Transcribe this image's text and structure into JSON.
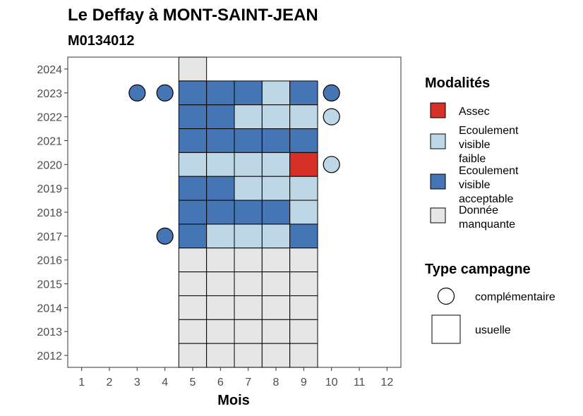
{
  "chart_data": {
    "type": "heatmap",
    "title": "Le Deffay à MONT-SAINT-JEAN",
    "subtitle": "M0134012",
    "xlabel": "Mois",
    "ylabel": "",
    "x_ticks": [
      "1",
      "2",
      "3",
      "4",
      "5",
      "6",
      "7",
      "8",
      "9",
      "10",
      "11",
      "12"
    ],
    "y_ticks": [
      "2012",
      "2013",
      "2014",
      "2015",
      "2016",
      "2017",
      "2018",
      "2019",
      "2020",
      "2021",
      "2022",
      "2023",
      "2024"
    ],
    "xlim": [
      0.5,
      12.5
    ],
    "ylim": [
      2011.5,
      2024.5
    ],
    "grid": false,
    "legend_placement": "right",
    "modalities": {
      "title": "Modalités",
      "items": [
        {
          "key": "assec",
          "label_lines": [
            "Assec"
          ],
          "color": "#d73027"
        },
        {
          "key": "faible",
          "label_lines": [
            "Ecoulement",
            "visible",
            "faible"
          ],
          "color": "#bdd7e7"
        },
        {
          "key": "acceptable",
          "label_lines": [
            "Ecoulement",
            "visible",
            "acceptable"
          ],
          "color": "#4575b4"
        },
        {
          "key": "manquante",
          "label_lines": [
            "Donnée",
            "manquante"
          ],
          "color": "#e6e6e6"
        }
      ]
    },
    "campaign_types": {
      "title": "Type campagne",
      "items": [
        {
          "key": "complementaire",
          "label": "complémentaire",
          "shape": "circle"
        },
        {
          "key": "usuelle",
          "label": "usuelle",
          "shape": "square"
        }
      ]
    },
    "points": [
      {
        "year": 2024,
        "month": 5,
        "modality": "manquante",
        "type": "usuelle"
      },
      {
        "year": 2023,
        "month": 3,
        "modality": "acceptable",
        "type": "complementaire"
      },
      {
        "year": 2023,
        "month": 4,
        "modality": "acceptable",
        "type": "complementaire"
      },
      {
        "year": 2023,
        "month": 5,
        "modality": "acceptable",
        "type": "usuelle"
      },
      {
        "year": 2023,
        "month": 6,
        "modality": "acceptable",
        "type": "usuelle"
      },
      {
        "year": 2023,
        "month": 7,
        "modality": "acceptable",
        "type": "usuelle"
      },
      {
        "year": 2023,
        "month": 8,
        "modality": "faible",
        "type": "usuelle"
      },
      {
        "year": 2023,
        "month": 9,
        "modality": "acceptable",
        "type": "usuelle"
      },
      {
        "year": 2023,
        "month": 10,
        "modality": "acceptable",
        "type": "complementaire"
      },
      {
        "year": 2022,
        "month": 5,
        "modality": "acceptable",
        "type": "usuelle"
      },
      {
        "year": 2022,
        "month": 6,
        "modality": "acceptable",
        "type": "usuelle"
      },
      {
        "year": 2022,
        "month": 7,
        "modality": "faible",
        "type": "usuelle"
      },
      {
        "year": 2022,
        "month": 8,
        "modality": "faible",
        "type": "usuelle"
      },
      {
        "year": 2022,
        "month": 9,
        "modality": "faible",
        "type": "usuelle"
      },
      {
        "year": 2022,
        "month": 10,
        "modality": "faible",
        "type": "complementaire"
      },
      {
        "year": 2021,
        "month": 5,
        "modality": "acceptable",
        "type": "usuelle"
      },
      {
        "year": 2021,
        "month": 6,
        "modality": "acceptable",
        "type": "usuelle"
      },
      {
        "year": 2021,
        "month": 7,
        "modality": "acceptable",
        "type": "usuelle"
      },
      {
        "year": 2021,
        "month": 8,
        "modality": "acceptable",
        "type": "usuelle"
      },
      {
        "year": 2021,
        "month": 9,
        "modality": "acceptable",
        "type": "usuelle"
      },
      {
        "year": 2020,
        "month": 5,
        "modality": "faible",
        "type": "usuelle"
      },
      {
        "year": 2020,
        "month": 6,
        "modality": "faible",
        "type": "usuelle"
      },
      {
        "year": 2020,
        "month": 7,
        "modality": "faible",
        "type": "usuelle"
      },
      {
        "year": 2020,
        "month": 8,
        "modality": "faible",
        "type": "usuelle"
      },
      {
        "year": 2020,
        "month": 9,
        "modality": "assec",
        "type": "usuelle"
      },
      {
        "year": 2020,
        "month": 10,
        "modality": "faible",
        "type": "complementaire"
      },
      {
        "year": 2019,
        "month": 5,
        "modality": "acceptable",
        "type": "usuelle"
      },
      {
        "year": 2019,
        "month": 6,
        "modality": "acceptable",
        "type": "usuelle"
      },
      {
        "year": 2019,
        "month": 7,
        "modality": "faible",
        "type": "usuelle"
      },
      {
        "year": 2019,
        "month": 8,
        "modality": "faible",
        "type": "usuelle"
      },
      {
        "year": 2019,
        "month": 9,
        "modality": "faible",
        "type": "usuelle"
      },
      {
        "year": 2018,
        "month": 5,
        "modality": "acceptable",
        "type": "usuelle"
      },
      {
        "year": 2018,
        "month": 6,
        "modality": "acceptable",
        "type": "usuelle"
      },
      {
        "year": 2018,
        "month": 7,
        "modality": "acceptable",
        "type": "usuelle"
      },
      {
        "year": 2018,
        "month": 8,
        "modality": "acceptable",
        "type": "usuelle"
      },
      {
        "year": 2018,
        "month": 9,
        "modality": "faible",
        "type": "usuelle"
      },
      {
        "year": 2017,
        "month": 4,
        "modality": "acceptable",
        "type": "complementaire"
      },
      {
        "year": 2017,
        "month": 5,
        "modality": "acceptable",
        "type": "usuelle"
      },
      {
        "year": 2017,
        "month": 6,
        "modality": "faible",
        "type": "usuelle"
      },
      {
        "year": 2017,
        "month": 7,
        "modality": "faible",
        "type": "usuelle"
      },
      {
        "year": 2017,
        "month": 8,
        "modality": "faible",
        "type": "usuelle"
      },
      {
        "year": 2017,
        "month": 9,
        "modality": "acceptable",
        "type": "usuelle"
      },
      {
        "year": 2016,
        "month": 5,
        "modality": "manquante",
        "type": "usuelle"
      },
      {
        "year": 2016,
        "month": 6,
        "modality": "manquante",
        "type": "usuelle"
      },
      {
        "year": 2016,
        "month": 7,
        "modality": "manquante",
        "type": "usuelle"
      },
      {
        "year": 2016,
        "month": 8,
        "modality": "manquante",
        "type": "usuelle"
      },
      {
        "year": 2016,
        "month": 9,
        "modality": "manquante",
        "type": "usuelle"
      },
      {
        "year": 2015,
        "month": 5,
        "modality": "manquante",
        "type": "usuelle"
      },
      {
        "year": 2015,
        "month": 6,
        "modality": "manquante",
        "type": "usuelle"
      },
      {
        "year": 2015,
        "month": 7,
        "modality": "manquante",
        "type": "usuelle"
      },
      {
        "year": 2015,
        "month": 8,
        "modality": "manquante",
        "type": "usuelle"
      },
      {
        "year": 2015,
        "month": 9,
        "modality": "manquante",
        "type": "usuelle"
      },
      {
        "year": 2014,
        "month": 5,
        "modality": "manquante",
        "type": "usuelle"
      },
      {
        "year": 2014,
        "month": 6,
        "modality": "manquante",
        "type": "usuelle"
      },
      {
        "year": 2014,
        "month": 7,
        "modality": "manquante",
        "type": "usuelle"
      },
      {
        "year": 2014,
        "month": 8,
        "modality": "manquante",
        "type": "usuelle"
      },
      {
        "year": 2014,
        "month": 9,
        "modality": "manquante",
        "type": "usuelle"
      },
      {
        "year": 2013,
        "month": 5,
        "modality": "manquante",
        "type": "usuelle"
      },
      {
        "year": 2013,
        "month": 6,
        "modality": "manquante",
        "type": "usuelle"
      },
      {
        "year": 2013,
        "month": 7,
        "modality": "manquante",
        "type": "usuelle"
      },
      {
        "year": 2013,
        "month": 8,
        "modality": "manquante",
        "type": "usuelle"
      },
      {
        "year": 2013,
        "month": 9,
        "modality": "manquante",
        "type": "usuelle"
      },
      {
        "year": 2012,
        "month": 5,
        "modality": "manquante",
        "type": "usuelle"
      },
      {
        "year": 2012,
        "month": 6,
        "modality": "manquante",
        "type": "usuelle"
      },
      {
        "year": 2012,
        "month": 7,
        "modality": "manquante",
        "type": "usuelle"
      },
      {
        "year": 2012,
        "month": 8,
        "modality": "manquante",
        "type": "usuelle"
      },
      {
        "year": 2012,
        "month": 9,
        "modality": "manquante",
        "type": "usuelle"
      }
    ]
  }
}
